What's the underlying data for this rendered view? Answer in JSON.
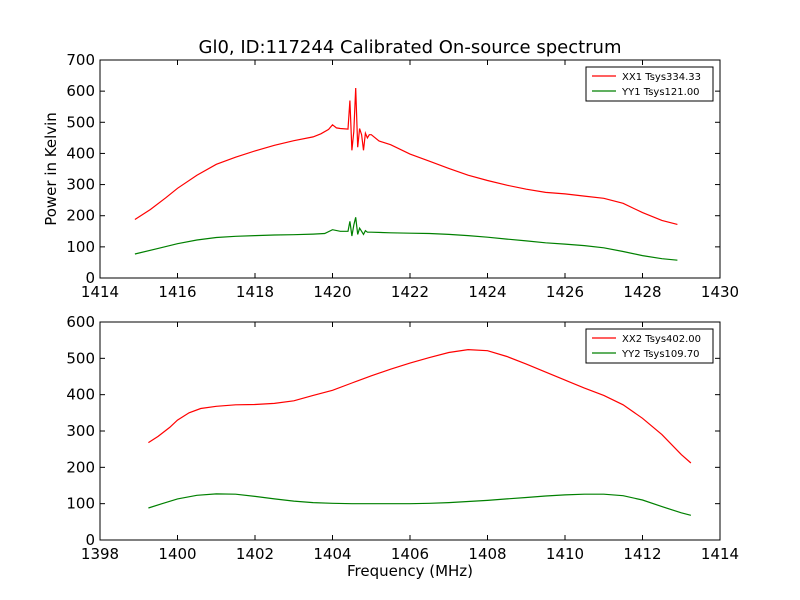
{
  "chart_data": [
    {
      "type": "line",
      "title": "Gl0, ID:117244 Calibrated On-source spectrum",
      "xlabel": "",
      "ylabel": "Power in Kelvin",
      "xlim": [
        1414,
        1430
      ],
      "ylim": [
        0,
        700
      ],
      "xticks": [
        1414,
        1416,
        1418,
        1420,
        1422,
        1424,
        1426,
        1428,
        1430
      ],
      "yticks": [
        0,
        100,
        200,
        300,
        400,
        500,
        600,
        700
      ],
      "legend_position": "top-right",
      "series": [
        {
          "name": "XX1 Tsys334.33",
          "color": "#ff0000",
          "x": [
            1414.9,
            1415.3,
            1415.7,
            1416.0,
            1416.5,
            1417.0,
            1417.5,
            1418.0,
            1418.5,
            1419.0,
            1419.5,
            1419.7,
            1419.9,
            1420.0,
            1420.1,
            1420.2,
            1420.4,
            1420.45,
            1420.5,
            1420.55,
            1420.6,
            1420.65,
            1420.7,
            1420.75,
            1420.8,
            1420.85,
            1420.9,
            1420.95,
            1421.0,
            1421.2,
            1421.5,
            1422.0,
            1422.5,
            1423.0,
            1423.5,
            1424.0,
            1424.5,
            1425.0,
            1425.5,
            1426.0,
            1426.5,
            1427.0,
            1427.5,
            1428.0,
            1428.5,
            1428.9
          ],
          "y": [
            188,
            220,
            258,
            288,
            330,
            365,
            388,
            408,
            426,
            441,
            453,
            463,
            477,
            492,
            482,
            480,
            478,
            570,
            410,
            470,
            610,
            420,
            480,
            460,
            410,
            465,
            450,
            460,
            460,
            440,
            428,
            398,
            375,
            352,
            330,
            313,
            298,
            285,
            275,
            270,
            263,
            256,
            240,
            210,
            185,
            172
          ]
        },
        {
          "name": "YY1 Tsys121.00",
          "color": "#008000",
          "x": [
            1414.9,
            1415.5,
            1416.0,
            1416.5,
            1417.0,
            1417.5,
            1418.0,
            1418.5,
            1419.0,
            1419.5,
            1419.8,
            1420.0,
            1420.2,
            1420.4,
            1420.45,
            1420.5,
            1420.55,
            1420.6,
            1420.65,
            1420.7,
            1420.75,
            1420.8,
            1420.85,
            1420.9,
            1421.0,
            1421.5,
            1422.0,
            1422.5,
            1423.0,
            1423.5,
            1424.0,
            1424.5,
            1425.0,
            1425.5,
            1426.0,
            1426.5,
            1427.0,
            1427.5,
            1428.0,
            1428.5,
            1428.9
          ],
          "y": [
            77,
            95,
            110,
            122,
            130,
            134,
            136,
            138,
            139,
            141,
            143,
            155,
            150,
            150,
            182,
            135,
            170,
            195,
            140,
            160,
            150,
            140,
            152,
            147,
            147,
            145,
            144,
            143,
            140,
            136,
            131,
            125,
            119,
            113,
            109,
            104,
            97,
            85,
            72,
            62,
            57
          ]
        }
      ]
    },
    {
      "type": "line",
      "title": "",
      "xlabel": "Frequency (MHz)",
      "ylabel": "",
      "xlim": [
        1398,
        1414
      ],
      "ylim": [
        0,
        600
      ],
      "xticks": [
        1398,
        1400,
        1402,
        1404,
        1406,
        1408,
        1410,
        1412,
        1414
      ],
      "yticks": [
        0,
        100,
        200,
        300,
        400,
        500,
        600
      ],
      "legend_position": "top-right",
      "series": [
        {
          "name": "XX2 Tsys402.00",
          "color": "#ff0000",
          "x": [
            1399.25,
            1399.5,
            1399.8,
            1400.0,
            1400.3,
            1400.6,
            1401.0,
            1401.5,
            1402.0,
            1402.5,
            1403.0,
            1403.5,
            1404.0,
            1404.5,
            1405.0,
            1405.5,
            1406.0,
            1406.5,
            1407.0,
            1407.5,
            1408.0,
            1408.5,
            1409.0,
            1409.5,
            1410.0,
            1410.5,
            1411.0,
            1411.5,
            1412.0,
            1412.5,
            1413.0,
            1413.25
          ],
          "y": [
            268,
            285,
            310,
            330,
            350,
            362,
            368,
            372,
            373,
            376,
            383,
            398,
            412,
            432,
            452,
            470,
            487,
            502,
            516,
            524,
            521,
            505,
            484,
            462,
            440,
            418,
            398,
            372,
            335,
            290,
            235,
            212
          ]
        },
        {
          "name": "YY2 Tsys109.70",
          "color": "#008000",
          "x": [
            1399.25,
            1399.6,
            1400.0,
            1400.5,
            1401.0,
            1401.5,
            1402.0,
            1402.5,
            1403.0,
            1403.5,
            1404.0,
            1404.5,
            1405.0,
            1405.5,
            1406.0,
            1406.5,
            1407.0,
            1407.5,
            1408.0,
            1408.5,
            1409.0,
            1409.5,
            1410.0,
            1410.5,
            1411.0,
            1411.5,
            1412.0,
            1412.5,
            1413.0,
            1413.25
          ],
          "y": [
            88,
            100,
            113,
            123,
            127,
            126,
            120,
            113,
            107,
            103,
            101,
            100,
            100,
            100,
            100,
            101,
            103,
            106,
            109,
            113,
            117,
            121,
            124,
            126,
            126,
            122,
            110,
            92,
            75,
            68
          ]
        }
      ]
    }
  ]
}
